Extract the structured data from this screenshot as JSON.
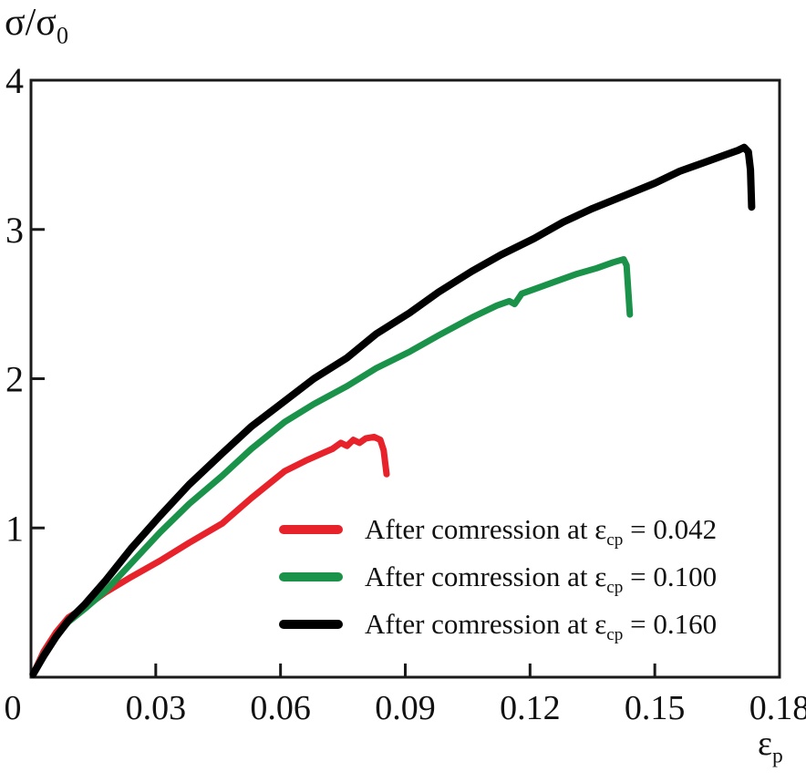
{
  "figure": {
    "y_axis_title": {
      "base": "σ/σ",
      "sub": "0"
    },
    "x_axis_title": {
      "base": "ε",
      "sub": "p"
    }
  },
  "legend": {
    "items": [
      {
        "prefix": "After comression at ε",
        "sub": "cp",
        "suffix": " = 0.042",
        "color": "#e8222b"
      },
      {
        "prefix": "After comression at ε",
        "sub": "cp",
        "suffix": " = 0.100",
        "color": "#1b9249"
      },
      {
        "prefix": "After comression at ε",
        "sub": "cp",
        "suffix": " = 0.160",
        "color": "#000000"
      }
    ]
  },
  "chart_data": {
    "type": "line",
    "title": "",
    "xlabel": "ε_p",
    "ylabel": "σ/σ_0",
    "xlim": [
      0,
      0.18
    ],
    "ylim": [
      0,
      4
    ],
    "grid": false,
    "legend_position": "inside lower right",
    "axis_color": "#1a1a1a",
    "x_ticks": [
      {
        "value": 0,
        "label": "0"
      },
      {
        "value": 0.03,
        "label": "0.03"
      },
      {
        "value": 0.06,
        "label": "0.06"
      },
      {
        "value": 0.09,
        "label": "0.09"
      },
      {
        "value": 0.12,
        "label": "0.12"
      },
      {
        "value": 0.15,
        "label": "0.15"
      },
      {
        "value": 0.18,
        "label": "0.18"
      }
    ],
    "y_ticks": [
      {
        "value": 1,
        "label": "1"
      },
      {
        "value": 2,
        "label": "2"
      },
      {
        "value": 3,
        "label": "3"
      },
      {
        "value": 4,
        "label": "4"
      }
    ],
    "series": [
      {
        "name": "After comression at ε_cp = 0.042",
        "color": "#e8222b",
        "width": 7,
        "failure_strain": 0.084,
        "peak_stress_ratio": 1.61,
        "points": [
          [
            0.0005,
            0.02
          ],
          [
            0.003,
            0.17
          ],
          [
            0.006,
            0.3
          ],
          [
            0.009,
            0.4
          ],
          [
            0.013,
            0.47
          ],
          [
            0.018,
            0.57
          ],
          [
            0.024,
            0.67
          ],
          [
            0.031,
            0.78
          ],
          [
            0.038,
            0.9
          ],
          [
            0.046,
            1.03
          ],
          [
            0.053,
            1.2
          ],
          [
            0.061,
            1.38
          ],
          [
            0.066,
            1.45
          ],
          [
            0.07,
            1.5
          ],
          [
            0.0725,
            1.53
          ],
          [
            0.0745,
            1.57
          ],
          [
            0.076,
            1.55
          ],
          [
            0.0775,
            1.59
          ],
          [
            0.079,
            1.57
          ],
          [
            0.0805,
            1.6
          ],
          [
            0.0825,
            1.61
          ],
          [
            0.084,
            1.59
          ],
          [
            0.0848,
            1.52
          ],
          [
            0.0855,
            1.36
          ]
        ]
      },
      {
        "name": "After comression at ε_cp = 0.100",
        "color": "#1b9249",
        "width": 7,
        "failure_strain": 0.143,
        "peak_stress_ratio": 2.8,
        "points": [
          [
            0.0005,
            0.02
          ],
          [
            0.003,
            0.15
          ],
          [
            0.006,
            0.27
          ],
          [
            0.009,
            0.37
          ],
          [
            0.013,
            0.46
          ],
          [
            0.018,
            0.58
          ],
          [
            0.024,
            0.76
          ],
          [
            0.031,
            0.97
          ],
          [
            0.038,
            1.16
          ],
          [
            0.046,
            1.35
          ],
          [
            0.053,
            1.53
          ],
          [
            0.061,
            1.71
          ],
          [
            0.068,
            1.83
          ],
          [
            0.076,
            1.95
          ],
          [
            0.083,
            2.07
          ],
          [
            0.091,
            2.18
          ],
          [
            0.098,
            2.29
          ],
          [
            0.106,
            2.41
          ],
          [
            0.112,
            2.49
          ],
          [
            0.115,
            2.52
          ],
          [
            0.1163,
            2.5
          ],
          [
            0.118,
            2.57
          ],
          [
            0.121,
            2.6
          ],
          [
            0.126,
            2.65
          ],
          [
            0.131,
            2.7
          ],
          [
            0.136,
            2.74
          ],
          [
            0.14,
            2.78
          ],
          [
            0.1425,
            2.8
          ],
          [
            0.1432,
            2.76
          ],
          [
            0.144,
            2.43
          ]
        ]
      },
      {
        "name": "After comression at ε_cp = 0.160",
        "color": "#000000",
        "width": 8,
        "failure_strain": 0.172,
        "peak_stress_ratio": 3.55,
        "points": [
          [
            0.0005,
            0.02
          ],
          [
            0.003,
            0.14
          ],
          [
            0.006,
            0.27
          ],
          [
            0.009,
            0.38
          ],
          [
            0.013,
            0.49
          ],
          [
            0.018,
            0.65
          ],
          [
            0.024,
            0.86
          ],
          [
            0.031,
            1.08
          ],
          [
            0.038,
            1.29
          ],
          [
            0.046,
            1.5
          ],
          [
            0.053,
            1.68
          ],
          [
            0.061,
            1.85
          ],
          [
            0.068,
            2.0
          ],
          [
            0.076,
            2.14
          ],
          [
            0.083,
            2.3
          ],
          [
            0.091,
            2.44
          ],
          [
            0.098,
            2.58
          ],
          [
            0.106,
            2.72
          ],
          [
            0.113,
            2.83
          ],
          [
            0.121,
            2.94
          ],
          [
            0.128,
            3.05
          ],
          [
            0.135,
            3.14
          ],
          [
            0.143,
            3.23
          ],
          [
            0.15,
            3.31
          ],
          [
            0.156,
            3.39
          ],
          [
            0.162,
            3.45
          ],
          [
            0.167,
            3.5
          ],
          [
            0.17,
            3.53
          ],
          [
            0.1715,
            3.55
          ],
          [
            0.1725,
            3.52
          ],
          [
            0.173,
            3.4
          ],
          [
            0.1733,
            3.15
          ]
        ]
      }
    ]
  }
}
